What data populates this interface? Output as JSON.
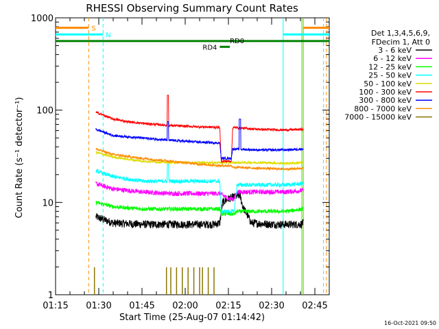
{
  "chart_data": {
    "type": "line",
    "title": "RHESSI Observing Summary Count Rates",
    "xlabel": "Start Time (25-Aug-07 01:14:42)",
    "ylabel": "Count Rate (s⁻¹ detector⁻¹)",
    "x_unit": "minutes after 01:15",
    "xlim": [
      0,
      95
    ],
    "ylim": [
      1,
      1000
    ],
    "y_scale": "log",
    "x_ticks": [
      {
        "value": 0,
        "label": "01:15"
      },
      {
        "value": 15,
        "label": "01:30"
      },
      {
        "value": 30,
        "label": "01:45"
      },
      {
        "value": 45,
        "label": "02:00"
      },
      {
        "value": 60,
        "label": "02:15"
      },
      {
        "value": 75,
        "label": "02:30"
      },
      {
        "value": 90,
        "label": "02:45"
      }
    ],
    "y_ticks": [
      {
        "value": 1,
        "label": "1"
      },
      {
        "value": 10,
        "label": "10"
      },
      {
        "value": 100,
        "label": "100"
      },
      {
        "value": 1000,
        "label": "1000"
      }
    ],
    "legend_header": [
      "Det 1,3,4,5,6,9,",
      "FDecim 1, Att 0"
    ],
    "legend_position": "right",
    "series": [
      {
        "name": "3 - 6 keV",
        "color": "#000000",
        "noise": 0.1,
        "points": [
          [
            14,
            7
          ],
          [
            20,
            6
          ],
          [
            30,
            5.8
          ],
          [
            40,
            5.8
          ],
          [
            50,
            5.8
          ],
          [
            55,
            5.8
          ],
          [
            57,
            6
          ],
          [
            58,
            10
          ],
          [
            60,
            11
          ],
          [
            64,
            12
          ],
          [
            65,
            9
          ],
          [
            68,
            6
          ],
          [
            75,
            5.8
          ],
          [
            85,
            5.8
          ],
          [
            86,
            6
          ]
        ]
      },
      {
        "name": "6 - 12 keV",
        "color": "#ff00ff",
        "noise": 0.06,
        "points": [
          [
            14,
            16
          ],
          [
            20,
            14
          ],
          [
            30,
            13
          ],
          [
            40,
            12.5
          ],
          [
            50,
            12.5
          ],
          [
            57,
            12.5
          ],
          [
            58,
            12
          ],
          [
            60,
            11
          ],
          [
            62,
            11
          ],
          [
            63,
            13
          ],
          [
            70,
            13
          ],
          [
            80,
            13
          ],
          [
            86,
            13.5
          ]
        ]
      },
      {
        "name": "12 - 25 keV",
        "color": "#00ff00",
        "noise": 0.05,
        "points": [
          [
            14,
            10
          ],
          [
            20,
            9
          ],
          [
            30,
            8.5
          ],
          [
            40,
            8.5
          ],
          [
            50,
            8.5
          ],
          [
            57,
            8.5
          ],
          [
            57.5,
            7.5
          ],
          [
            60,
            7.5
          ],
          [
            62,
            7.5
          ],
          [
            63,
            8
          ],
          [
            80,
            8
          ],
          [
            86,
            8.5
          ]
        ]
      },
      {
        "name": "25 - 50 keV",
        "color": "#00ffff",
        "noise": 0.05,
        "points": [
          [
            14,
            22
          ],
          [
            20,
            19
          ],
          [
            30,
            17
          ],
          [
            40,
            17
          ],
          [
            50,
            17
          ],
          [
            57,
            17
          ],
          [
            57.5,
            8
          ],
          [
            60,
            8
          ],
          [
            62,
            8
          ],
          [
            63,
            15.5
          ],
          [
            70,
            15.5
          ],
          [
            80,
            15.5
          ],
          [
            86,
            16
          ]
        ]
      },
      {
        "name": "50 - 100 keV",
        "color": "#dddd00",
        "noise": 0.03,
        "points": [
          [
            14,
            35
          ],
          [
            20,
            31
          ],
          [
            30,
            28
          ],
          [
            40,
            27
          ],
          [
            50,
            27
          ],
          [
            57,
            27
          ],
          [
            57.5,
            27
          ],
          [
            61,
            27
          ],
          [
            62,
            27
          ],
          [
            63,
            27
          ],
          [
            72,
            27
          ],
          [
            80,
            26.5
          ],
          [
            86,
            27
          ]
        ]
      },
      {
        "name": "100 - 300 keV",
        "color": "#ff0000",
        "noise": 0.03,
        "points": [
          [
            14,
            95
          ],
          [
            20,
            80
          ],
          [
            25,
            75
          ],
          [
            30,
            72
          ],
          [
            40,
            68
          ],
          [
            50,
            66
          ],
          [
            57,
            65
          ],
          [
            57.5,
            28
          ],
          [
            61,
            28
          ],
          [
            61.5,
            65
          ],
          [
            70,
            62
          ],
          [
            80,
            61
          ],
          [
            86,
            62
          ]
        ]
      },
      {
        "name": "300 - 800 keV",
        "color": "#0000ff",
        "noise": 0.03,
        "points": [
          [
            14,
            62
          ],
          [
            20,
            53
          ],
          [
            30,
            50
          ],
          [
            40,
            47
          ],
          [
            50,
            45
          ],
          [
            57,
            44
          ],
          [
            57.5,
            30
          ],
          [
            61,
            30
          ],
          [
            61.5,
            38
          ],
          [
            70,
            37
          ],
          [
            80,
            37
          ],
          [
            86,
            38
          ]
        ]
      },
      {
        "name": "800 - 7000 keV",
        "color": "#ff8c00",
        "noise": 0.03,
        "points": [
          [
            14,
            38
          ],
          [
            20,
            33
          ],
          [
            30,
            30
          ],
          [
            40,
            28
          ],
          [
            50,
            26
          ],
          [
            57,
            25
          ],
          [
            57.5,
            25
          ],
          [
            61,
            25
          ],
          [
            62,
            24
          ],
          [
            70,
            23.5
          ],
          [
            80,
            23
          ],
          [
            86,
            23.5
          ]
        ]
      },
      {
        "name": "7000 - 15000 keV",
        "color": "#8b7500",
        "noise": 0,
        "points": []
      }
    ],
    "spikes": [
      {
        "series": "100 - 300 keV",
        "x": 39,
        "value": 145
      },
      {
        "series": "300 - 800 keV",
        "x": 39,
        "value": 75
      },
      {
        "series": "25 - 50 keV",
        "x": 39,
        "value": 27
      },
      {
        "series": "300 - 800 keV",
        "x": 64,
        "value": 80
      }
    ],
    "baseline_bars": {
      "color": "#8b7500",
      "x": [
        13.5,
        38.5,
        40,
        42,
        44,
        46,
        48,
        50,
        51,
        53,
        55
      ]
    },
    "vertical_markers": [
      {
        "x": 11.5,
        "color": "#ff8c00",
        "dash": true
      },
      {
        "x": 16.5,
        "color": "#00ffff",
        "dash": true
      },
      {
        "x": 79,
        "color": "#00ffff",
        "dash": false
      },
      {
        "x": 85.5,
        "color": "#00ff00",
        "dash": false
      },
      {
        "x": 86,
        "color": "#ff8c00",
        "dash": false
      },
      {
        "x": 93,
        "color": "#00ffff",
        "dash": true
      },
      {
        "x": 94,
        "color": "#ff8c00",
        "dash": true
      }
    ],
    "flag_bars": [
      {
        "label": "S",
        "color": "#ff8c00",
        "x1": 0,
        "x2": 11.5,
        "value": 780
      },
      {
        "label": "",
        "color": "#ff8c00",
        "x1": 86,
        "x2": 95,
        "value": 780
      },
      {
        "label": "N",
        "color": "#00ffff",
        "x1": 0,
        "x2": 16.5,
        "value": 660
      },
      {
        "label": "",
        "color": "#00ffff",
        "x1": 79,
        "x2": 95,
        "value": 660
      },
      {
        "label": "RD0",
        "color": "#008000",
        "x1": 0,
        "x2": 95,
        "value": 560
      },
      {
        "label": "RD4",
        "color": "#008000",
        "x1": 57,
        "x2": 60.5,
        "value": 485
      }
    ],
    "timestamp": "16-Oct-2021 09:50"
  }
}
